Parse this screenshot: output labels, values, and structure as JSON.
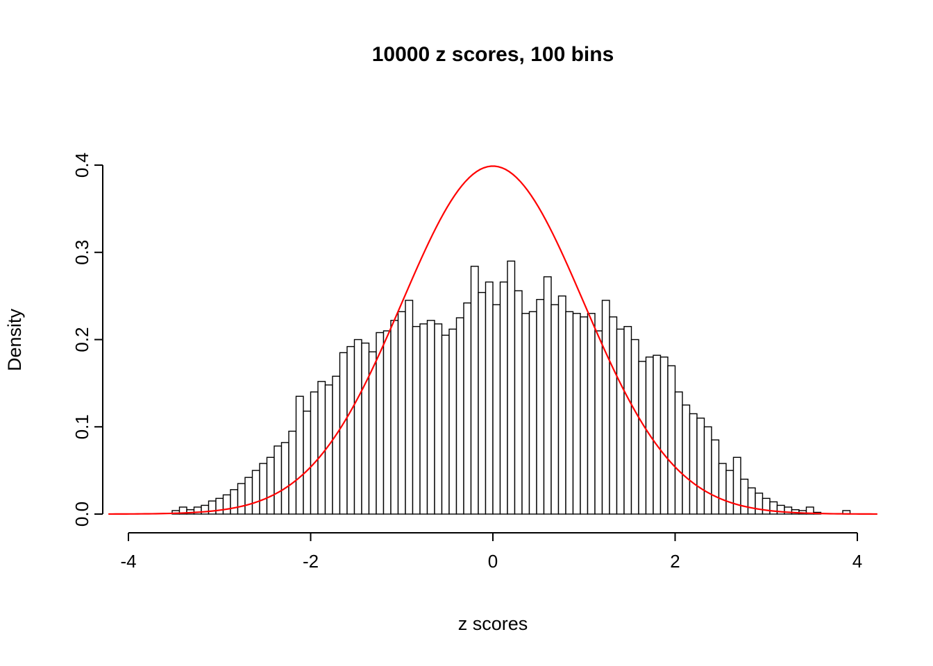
{
  "chart_data": {
    "type": "bar",
    "subtype": "histogram",
    "title": "10000 z scores, 100 bins",
    "xlabel": "z scores",
    "ylabel": "Density",
    "xlim": [
      -4,
      4
    ],
    "ylim": [
      0,
      0.4
    ],
    "xticks": [
      -4,
      -2,
      0,
      2,
      4
    ],
    "xtick_labels": [
      "-4",
      "-2",
      "0",
      "2",
      "4"
    ],
    "yticks": [
      0,
      0.1,
      0.2,
      0.3,
      0.4
    ],
    "ytick_labels": [
      "0.0",
      "0.1",
      "0.2",
      "0.3",
      "0.4"
    ],
    "grid": false,
    "legend": "none",
    "bar_fill": "#ffffff",
    "bar_stroke": "#000000",
    "axis_color": "#000000",
    "curve": {
      "name": "standard-normal-density",
      "mean": 0,
      "sd": 1,
      "peak": 0.3989,
      "color": "#ff0000",
      "x_extent": [
        -4.22,
        4.22
      ]
    },
    "bin_start": -3.52,
    "bin_width": 0.08,
    "bins": [
      0.004,
      0.008,
      0.005,
      0.008,
      0.01,
      0.015,
      0.018,
      0.022,
      0.028,
      0.035,
      0.042,
      0.05,
      0.058,
      0.065,
      0.078,
      0.082,
      0.095,
      0.135,
      0.118,
      0.14,
      0.152,
      0.148,
      0.158,
      0.185,
      0.192,
      0.2,
      0.196,
      0.186,
      0.208,
      0.21,
      0.222,
      0.232,
      0.245,
      0.215,
      0.218,
      0.222,
      0.218,
      0.205,
      0.212,
      0.225,
      0.242,
      0.284,
      0.254,
      0.266,
      0.24,
      0.266,
      0.29,
      0.256,
      0.23,
      0.232,
      0.246,
      0.272,
      0.24,
      0.25,
      0.232,
      0.23,
      0.226,
      0.23,
      0.21,
      0.245,
      0.226,
      0.212,
      0.215,
      0.2,
      0.175,
      0.18,
      0.182,
      0.18,
      0.17,
      0.14,
      0.125,
      0.115,
      0.11,
      0.1,
      0.085,
      0.058,
      0.05,
      0.065,
      0.04,
      0.03,
      0.024,
      0.018,
      0.014,
      0.01,
      0.008,
      0.005,
      0.004,
      0.008,
      0.002,
      0.0,
      0.0,
      0.0,
      0.004
    ]
  }
}
